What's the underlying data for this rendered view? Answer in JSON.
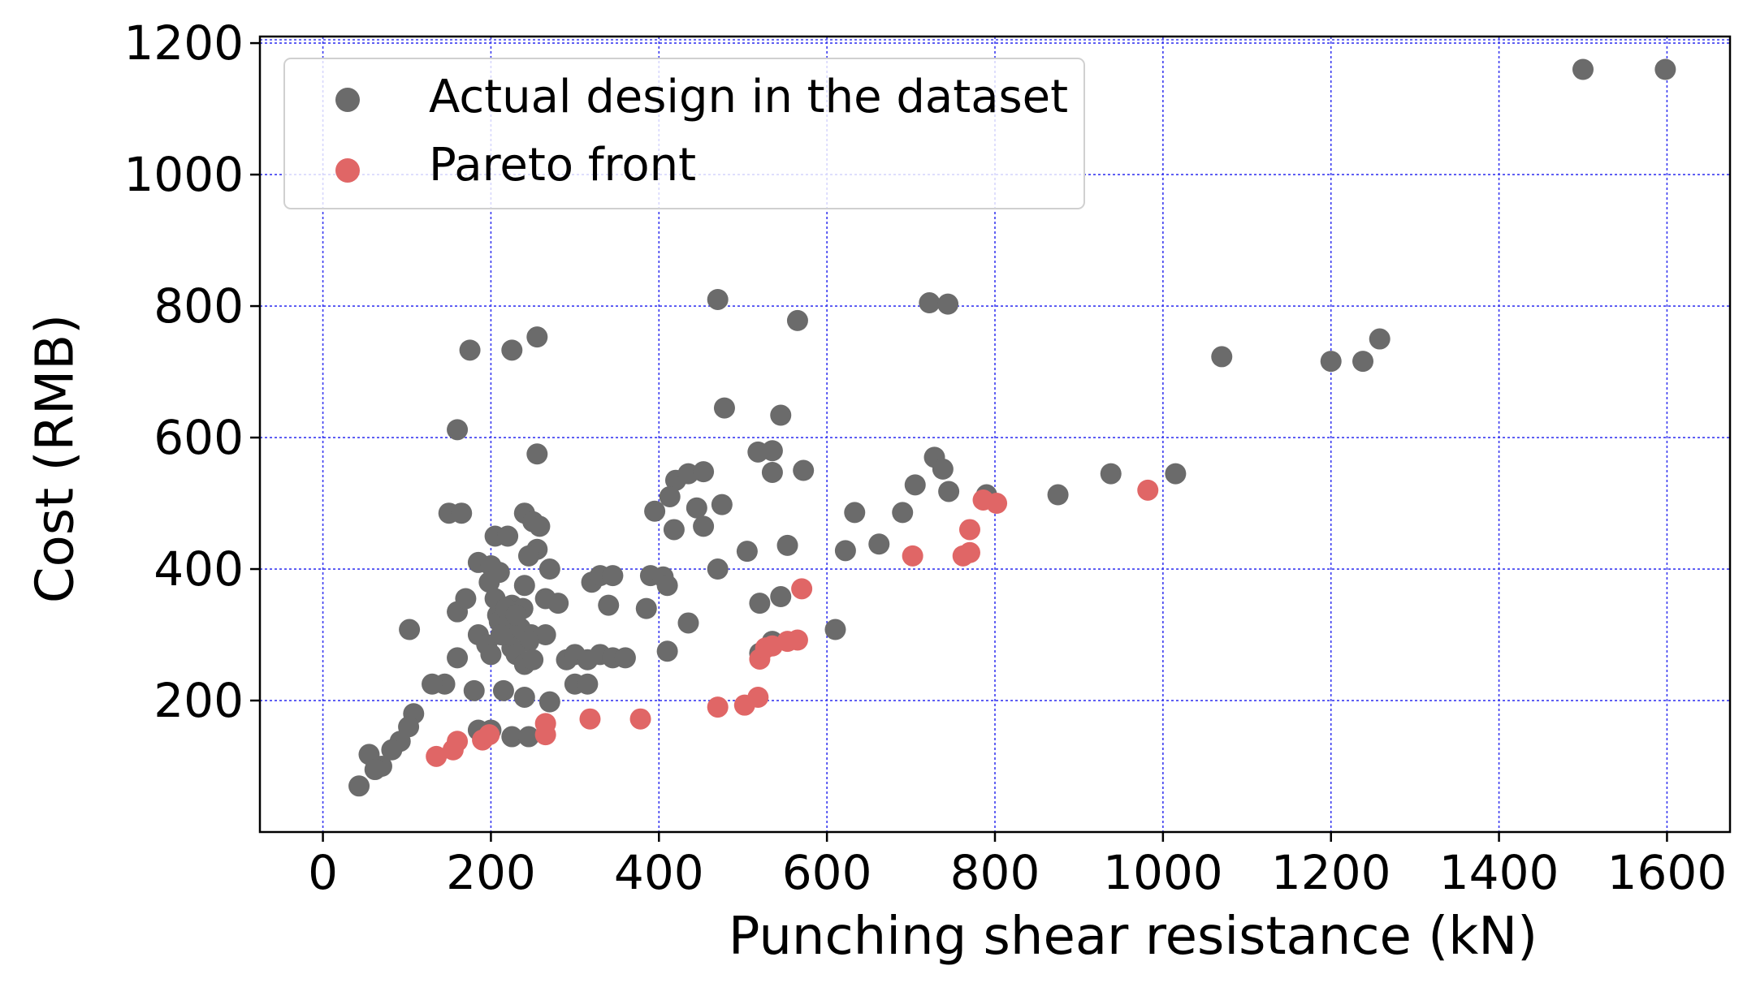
{
  "chart_data": {
    "type": "scatter",
    "xlabel": "Punching shear resistance (kN)",
    "ylabel": "Cost (RMB)",
    "xlim": [
      -75,
      1675
    ],
    "ylim": [
      0,
      1210
    ],
    "xticks": [
      0,
      200,
      400,
      600,
      800,
      1000,
      1200,
      1400,
      1600
    ],
    "yticks": [
      200,
      400,
      600,
      800,
      1000,
      1200
    ],
    "grid": true,
    "legend_position": "top-left",
    "colors": {
      "actual": "#6b6b6b",
      "pareto": "#e06666",
      "grid": "#3a3af0"
    },
    "series": [
      {
        "name": "Actual design in the dataset",
        "color": "#6b6b6b",
        "points": [
          [
            1500,
            1160
          ],
          [
            1598,
            1160
          ],
          [
            470,
            810
          ],
          [
            565,
            778
          ],
          [
            722,
            805
          ],
          [
            744,
            803
          ],
          [
            255,
            753
          ],
          [
            225,
            733
          ],
          [
            175,
            733
          ],
          [
            1070,
            723
          ],
          [
            1200,
            716
          ],
          [
            1238,
            716
          ],
          [
            1258,
            750
          ],
          [
            160,
            612
          ],
          [
            478,
            645
          ],
          [
            545,
            634
          ],
          [
            255,
            575
          ],
          [
            518,
            578
          ],
          [
            535,
            580
          ],
          [
            728,
            570
          ],
          [
            738,
            552
          ],
          [
            535,
            547
          ],
          [
            572,
            550
          ],
          [
            420,
            535
          ],
          [
            435,
            545
          ],
          [
            453,
            548
          ],
          [
            1015,
            545
          ],
          [
            938,
            545
          ],
          [
            745,
            518
          ],
          [
            790,
            513
          ],
          [
            875,
            513
          ],
          [
            705,
            528
          ],
          [
            633,
            486
          ],
          [
            690,
            486
          ],
          [
            475,
            498
          ],
          [
            445,
            493
          ],
          [
            395,
            488
          ],
          [
            413,
            510
          ],
          [
            150,
            485
          ],
          [
            165,
            485
          ],
          [
            240,
            485
          ],
          [
            250,
            472
          ],
          [
            258,
            465
          ],
          [
            205,
            450
          ],
          [
            220,
            450
          ],
          [
            255,
            430
          ],
          [
            245,
            420
          ],
          [
            418,
            460
          ],
          [
            453,
            465
          ],
          [
            505,
            427
          ],
          [
            553,
            436
          ],
          [
            622,
            428
          ],
          [
            662,
            438
          ],
          [
            185,
            410
          ],
          [
            200,
            405
          ],
          [
            210,
            395
          ],
          [
            198,
            380
          ],
          [
            240,
            375
          ],
          [
            270,
            400
          ],
          [
            225,
            345
          ],
          [
            280,
            348
          ],
          [
            265,
            355
          ],
          [
            238,
            340
          ],
          [
            320,
            380
          ],
          [
            330,
            390
          ],
          [
            345,
            390
          ],
          [
            390,
            390
          ],
          [
            405,
            388
          ],
          [
            470,
            400
          ],
          [
            410,
            375
          ],
          [
            520,
            348
          ],
          [
            545,
            358
          ],
          [
            610,
            308
          ],
          [
            160,
            335
          ],
          [
            170,
            355
          ],
          [
            205,
            355
          ],
          [
            208,
            330
          ],
          [
            220,
            320
          ],
          [
            225,
            305
          ],
          [
            235,
            310
          ],
          [
            248,
            300
          ],
          [
            265,
            300
          ],
          [
            245,
            290
          ],
          [
            225,
            280
          ],
          [
            230,
            270
          ],
          [
            240,
            255
          ],
          [
            250,
            262
          ],
          [
            185,
            300
          ],
          [
            195,
            285
          ],
          [
            200,
            270
          ],
          [
            210,
            320
          ],
          [
            212,
            300
          ],
          [
            218,
            340
          ],
          [
            230,
            330
          ],
          [
            340,
            345
          ],
          [
            385,
            340
          ],
          [
            435,
            318
          ],
          [
            103,
            308
          ],
          [
            160,
            265
          ],
          [
            180,
            215
          ],
          [
            145,
            225
          ],
          [
            130,
            225
          ],
          [
            290,
            262
          ],
          [
            300,
            270
          ],
          [
            315,
            262
          ],
          [
            330,
            270
          ],
          [
            345,
            265
          ],
          [
            360,
            265
          ],
          [
            300,
            225
          ],
          [
            315,
            225
          ],
          [
            410,
            275
          ],
          [
            520,
            272
          ],
          [
            535,
            290
          ],
          [
            215,
            215
          ],
          [
            240,
            205
          ],
          [
            270,
            198
          ],
          [
            108,
            180
          ],
          [
            102,
            160
          ],
          [
            92,
            138
          ],
          [
            82,
            125
          ],
          [
            70,
            100
          ],
          [
            55,
            118
          ],
          [
            62,
            95
          ],
          [
            43,
            70
          ],
          [
            200,
            155
          ],
          [
            185,
            155
          ],
          [
            225,
            145
          ],
          [
            245,
            145
          ]
        ]
      },
      {
        "name": "Pareto front",
        "color": "#e06666",
        "points": [
          [
            135,
            115
          ],
          [
            155,
            125
          ],
          [
            160,
            138
          ],
          [
            190,
            140
          ],
          [
            198,
            148
          ],
          [
            265,
            148
          ],
          [
            265,
            165
          ],
          [
            318,
            172
          ],
          [
            378,
            172
          ],
          [
            470,
            190
          ],
          [
            502,
            193
          ],
          [
            518,
            205
          ],
          [
            520,
            263
          ],
          [
            527,
            280
          ],
          [
            535,
            283
          ],
          [
            553,
            290
          ],
          [
            565,
            292
          ],
          [
            570,
            370
          ],
          [
            702,
            420
          ],
          [
            762,
            420
          ],
          [
            770,
            425
          ],
          [
            770,
            460
          ],
          [
            786,
            505
          ],
          [
            802,
            500
          ],
          [
            982,
            520
          ]
        ]
      }
    ]
  }
}
